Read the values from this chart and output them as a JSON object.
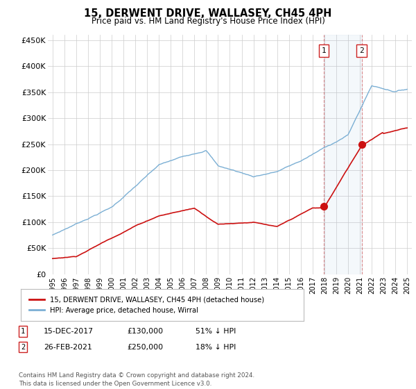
{
  "title": "15, DERWENT DRIVE, WALLASEY, CH45 4PH",
  "subtitle": "Price paid vs. HM Land Registry's House Price Index (HPI)",
  "hpi_color": "#7bafd4",
  "price_color": "#cc1111",
  "marker1_x": 2017.96,
  "marker1_y": 130000,
  "marker2_x": 2021.15,
  "marker2_y": 250000,
  "vline1_x": 2017.96,
  "vline2_x": 2021.15,
  "ylim": [
    0,
    460000
  ],
  "xlim_start": 1994.6,
  "xlim_end": 2025.4,
  "yticks": [
    0,
    50000,
    100000,
    150000,
    200000,
    250000,
    300000,
    350000,
    400000,
    450000
  ],
  "ytick_labels": [
    "£0",
    "£50K",
    "£100K",
    "£150K",
    "£200K",
    "£250K",
    "£300K",
    "£350K",
    "£400K",
    "£450K"
  ],
  "xticks": [
    1995,
    1996,
    1997,
    1998,
    1999,
    2000,
    2001,
    2002,
    2003,
    2004,
    2005,
    2006,
    2007,
    2008,
    2009,
    2010,
    2011,
    2012,
    2013,
    2014,
    2015,
    2016,
    2017,
    2018,
    2019,
    2020,
    2021,
    2022,
    2023,
    2024,
    2025
  ],
  "legend_line1": "15, DERWENT DRIVE, WALLASEY, CH45 4PH (detached house)",
  "legend_line2": "HPI: Average price, detached house, Wirral",
  "footnote": "Contains HM Land Registry data © Crown copyright and database right 2024.\nThis data is licensed under the Open Government Licence v3.0."
}
